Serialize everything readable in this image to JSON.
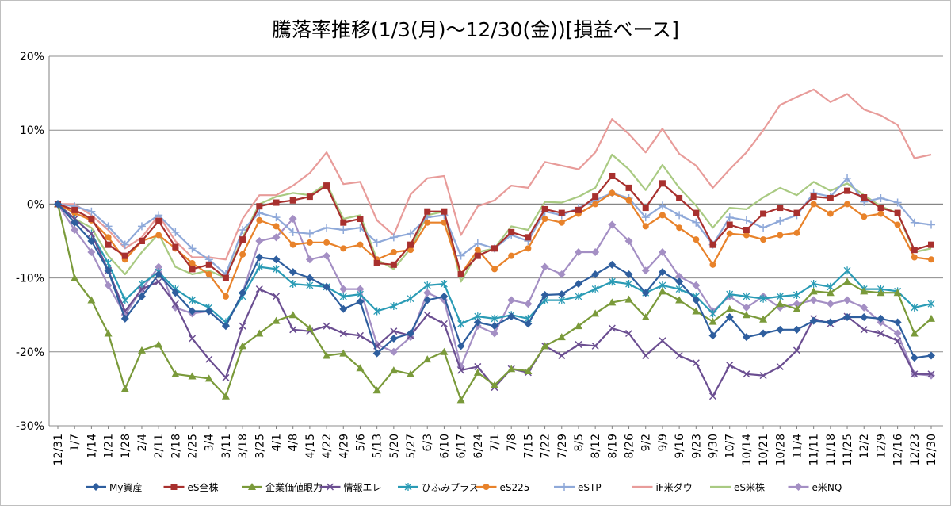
{
  "chart_data": {
    "type": "line",
    "title": "騰落率推移(1/3(月)～12/30(金))[損益ベース]",
    "xlabel": "",
    "ylabel": "",
    "ylim": [
      -30,
      20
    ],
    "yticks": [
      20,
      10,
      0,
      -10,
      -20,
      -30
    ],
    "ytick_labels": [
      "20%",
      "10%",
      "0%",
      "-10%",
      "-20%",
      "-30%"
    ],
    "grid": true,
    "legend_position": "bottom",
    "categories": [
      "12/31",
      "1/7",
      "1/14",
      "1/21",
      "1/28",
      "2/4",
      "2/11",
      "2/18",
      "2/25",
      "3/4",
      "3/11",
      "3/18",
      "3/25",
      "4/1",
      "4/8",
      "4/15",
      "4/22",
      "4/29",
      "5/6",
      "5/13",
      "5/20",
      "5/27",
      "6/3",
      "6/10",
      "6/17",
      "6/24",
      "7/1",
      "7/8",
      "7/15",
      "7/22",
      "7/29",
      "8/5",
      "8/12",
      "8/19",
      "8/26",
      "9/2",
      "9/9",
      "9/16",
      "9/23",
      "9/30",
      "10/7",
      "10/14",
      "10/21",
      "10/28",
      "11/4",
      "11/11",
      "11/18",
      "11/25",
      "12/2",
      "12/9",
      "12/16",
      "12/23",
      "12/30"
    ],
    "series": [
      {
        "name": "My資産",
        "color": "#2E5E9E",
        "marker": "diamond",
        "values": [
          0,
          -2.5,
          -5,
          -9,
          -15.5,
          -12.5,
          -9.5,
          -12,
          -14.5,
          -14.5,
          -16.5,
          -12,
          -7.2,
          -7.5,
          -9.2,
          -10,
          -11.2,
          -14.2,
          -13.2,
          -20.2,
          -18.2,
          -17.5,
          -13,
          -12.5,
          -19.2,
          -16,
          -16.5,
          -15.2,
          -16.2,
          -12.3,
          -12.2,
          -10.8,
          -9.5,
          -8.2,
          -9.5,
          -12,
          -9.2,
          -10.5,
          -13,
          -17.8,
          -15.3,
          -18,
          -17.5,
          -17,
          -17,
          -15.8,
          -16,
          -15.3,
          -15.3,
          -15.5,
          -16,
          -20.8,
          -20.5
        ]
      },
      {
        "name": "eS全株",
        "color": "#A8302E",
        "marker": "square",
        "values": [
          0,
          -0.8,
          -2,
          -5.5,
          -7,
          -5,
          -2.3,
          -5.8,
          -8.8,
          -8.2,
          -10,
          -4.8,
          -0.3,
          0.2,
          0.5,
          1,
          2.5,
          -2.5,
          -2,
          -8,
          -8.2,
          -5.5,
          -1,
          -1,
          -9.5,
          -7,
          -6,
          -3.8,
          -4.5,
          -0.7,
          -1.2,
          -0.8,
          1,
          3.8,
          2.2,
          -0.5,
          2.8,
          0.8,
          -1.2,
          -5.5,
          -2.8,
          -3.5,
          -1.3,
          -0.5,
          -1.2,
          1,
          0.8,
          1.8,
          0.9,
          -0.5,
          -1.2,
          -6.2,
          -5.5
        ]
      },
      {
        "name": "企業価値眼力",
        "color": "#7A9A3A",
        "marker": "triangle",
        "values": [
          0,
          -10,
          -13,
          -17.5,
          -25,
          -19.8,
          -19,
          -23,
          -23.3,
          -23.6,
          -26,
          -19.2,
          -17.5,
          -15.8,
          -15,
          -16.8,
          -20.5,
          -20.2,
          -22.2,
          -25.2,
          -22.5,
          -23,
          -21,
          -20,
          -26.5,
          -22.8,
          -24.5,
          -22.3,
          -22.6,
          -19.2,
          -18,
          -16.5,
          -14.8,
          -13.3,
          -12.9,
          -15.3,
          -11.8,
          -13,
          -14.5,
          -15.9,
          -14.2,
          -15,
          -15.6,
          -13.5,
          -14.2,
          -11.8,
          -12,
          -10.5,
          -11.8,
          -12,
          -12,
          -17.5,
          -15.5
        ]
      },
      {
        "name": "情報エレ",
        "color": "#6B4E91",
        "marker": "x",
        "values": [
          0,
          -2,
          -4,
          -9,
          -14.5,
          -11.5,
          -10.5,
          -13.5,
          -18.2,
          -21,
          -23.5,
          -16.5,
          -11.5,
          -12.5,
          -17,
          -17.2,
          -16.5,
          -17.5,
          -17.8,
          -19.2,
          -17.2,
          -17.8,
          -15,
          -16.2,
          -22.5,
          -22,
          -24.8,
          -22.3,
          -22.8,
          -19.2,
          -20.5,
          -19,
          -19.2,
          -16.8,
          -17.5,
          -20.5,
          -18.5,
          -20.5,
          -21.5,
          -26,
          -21.8,
          -23,
          -23.2,
          -22,
          -19.8,
          -15.5,
          -16.2,
          -15.2,
          -17,
          -17.5,
          -18.5,
          -23,
          -23
        ]
      },
      {
        "name": "ひふみプラス",
        "color": "#2A9BB5",
        "marker": "asterisk",
        "values": [
          0,
          -2,
          -4,
          -8,
          -13,
          -10.8,
          -9.2,
          -11.5,
          -13,
          -14,
          -16,
          -12.5,
          -8.5,
          -8.8,
          -10.8,
          -11,
          -11.2,
          -12.5,
          -12.2,
          -14.5,
          -13.8,
          -12.8,
          -11,
          -10.8,
          -16.2,
          -15.2,
          -15.5,
          -15,
          -15.5,
          -13,
          -13,
          -12.5,
          -11.5,
          -10.5,
          -10.8,
          -12,
          -11,
          -11.5,
          -12.5,
          -14.8,
          -12.2,
          -12.5,
          -12.8,
          -12.5,
          -12.3,
          -10.8,
          -11.2,
          -9,
          -11.5,
          -11.5,
          -11.8,
          -14,
          -13.5
        ]
      },
      {
        "name": "eS225",
        "color": "#E8822A",
        "marker": "circle",
        "values": [
          0,
          -1.2,
          -2.2,
          -4.5,
          -7.5,
          -5,
          -4.2,
          -6,
          -8,
          -9.5,
          -12.5,
          -6.8,
          -2.2,
          -3,
          -5.5,
          -5.2,
          -5.2,
          -6,
          -5.5,
          -7.5,
          -6.5,
          -6.2,
          -2.5,
          -2.5,
          -9.5,
          -6.2,
          -8.8,
          -7,
          -6,
          -2,
          -2.5,
          -1.3,
          0,
          1.5,
          0.5,
          -3,
          -1.5,
          -3.2,
          -4.8,
          -8.2,
          -4,
          -4.2,
          -4.8,
          -4.2,
          -3.9,
          0,
          -1.3,
          0,
          -1.7,
          -1.3,
          -2.8,
          -7.2,
          -7.5
        ]
      },
      {
        "name": "eSTP",
        "color": "#8FA9D9",
        "marker": "plus",
        "values": [
          0,
          -0.3,
          -1,
          -3,
          -5.5,
          -3,
          -1.5,
          -3.8,
          -6,
          -7.5,
          -9.5,
          -3.5,
          -1.2,
          -1.8,
          -3.8,
          -4,
          -3.2,
          -3.5,
          -3.2,
          -5.2,
          -4.5,
          -4,
          -1.8,
          -1.5,
          -7,
          -5.3,
          -6,
          -4.2,
          -5,
          -1,
          -1.5,
          -0.5,
          0.5,
          1.5,
          0.8,
          -1.8,
          -0.2,
          -1.5,
          -2.5,
          -5.5,
          -1.8,
          -2.2,
          -3.2,
          -2.3,
          -1.5,
          1.5,
          1,
          3.5,
          0.3,
          0.8,
          0.2,
          -2.5,
          -2.8
        ]
      },
      {
        "name": "iF米ダウ",
        "color": "#E89C9A",
        "marker": "none",
        "values": [
          0,
          0,
          -1.5,
          -3.5,
          -6,
          -4.5,
          -1.5,
          -5,
          -7.2,
          -7.2,
          -7.5,
          -2,
          1.2,
          1.2,
          2.5,
          4.2,
          7,
          2.7,
          3,
          -2.2,
          -4.2,
          1.3,
          3.5,
          3.8,
          -4.2,
          -0.3,
          0.5,
          2.5,
          2.2,
          5.7,
          5.2,
          4.7,
          7,
          11.5,
          9.5,
          7,
          10.2,
          6.8,
          5.2,
          2.2,
          4.7,
          7,
          10,
          13.4,
          14.5,
          15.5,
          13.8,
          14.9,
          12.8,
          12,
          10.7,
          6.2,
          6.7
        ]
      },
      {
        "name": "eS米株",
        "color": "#A9CA82",
        "marker": "none",
        "values": [
          0,
          -2,
          -3.2,
          -7,
          -9.5,
          -6.5,
          -4,
          -8.5,
          -9.5,
          -9,
          -10,
          -4.5,
          0,
          1,
          1.5,
          1.2,
          2.8,
          -2,
          -1.5,
          -7.5,
          -8.8,
          -6,
          -1.5,
          -1,
          -10.5,
          -6.5,
          -6,
          -3,
          -3.5,
          0.3,
          0.2,
          1,
          2.2,
          6.7,
          4.7,
          1.9,
          5.3,
          2.2,
          -0.2,
          -3.2,
          -0.5,
          -0.7,
          0.9,
          2.2,
          1.2,
          3,
          1.8,
          2.8,
          1.2,
          -0.3,
          -1.2,
          -6.5,
          -6
        ]
      },
      {
        "name": "e米NQ",
        "color": "#A48FC4",
        "marker": "diamond",
        "values": [
          0,
          -3.5,
          -6.5,
          -11,
          -15,
          -11.5,
          -8.5,
          -14,
          -14.8,
          -14.5,
          -16.5,
          -12,
          -5,
          -4.5,
          -2,
          -7.5,
          -7,
          -11.5,
          -11.5,
          -19,
          -20,
          -18,
          -12,
          -13,
          -22,
          -16.5,
          -17.5,
          -13,
          -13.5,
          -8.5,
          -9.5,
          -6.5,
          -6.5,
          -2.8,
          -5,
          -9,
          -6.5,
          -9.8,
          -11,
          -14.5,
          -12.5,
          -14,
          -12.5,
          -14,
          -13.5,
          -13,
          -13.5,
          -13,
          -14,
          -16,
          -17.5,
          -23,
          -23.2
        ]
      }
    ]
  }
}
